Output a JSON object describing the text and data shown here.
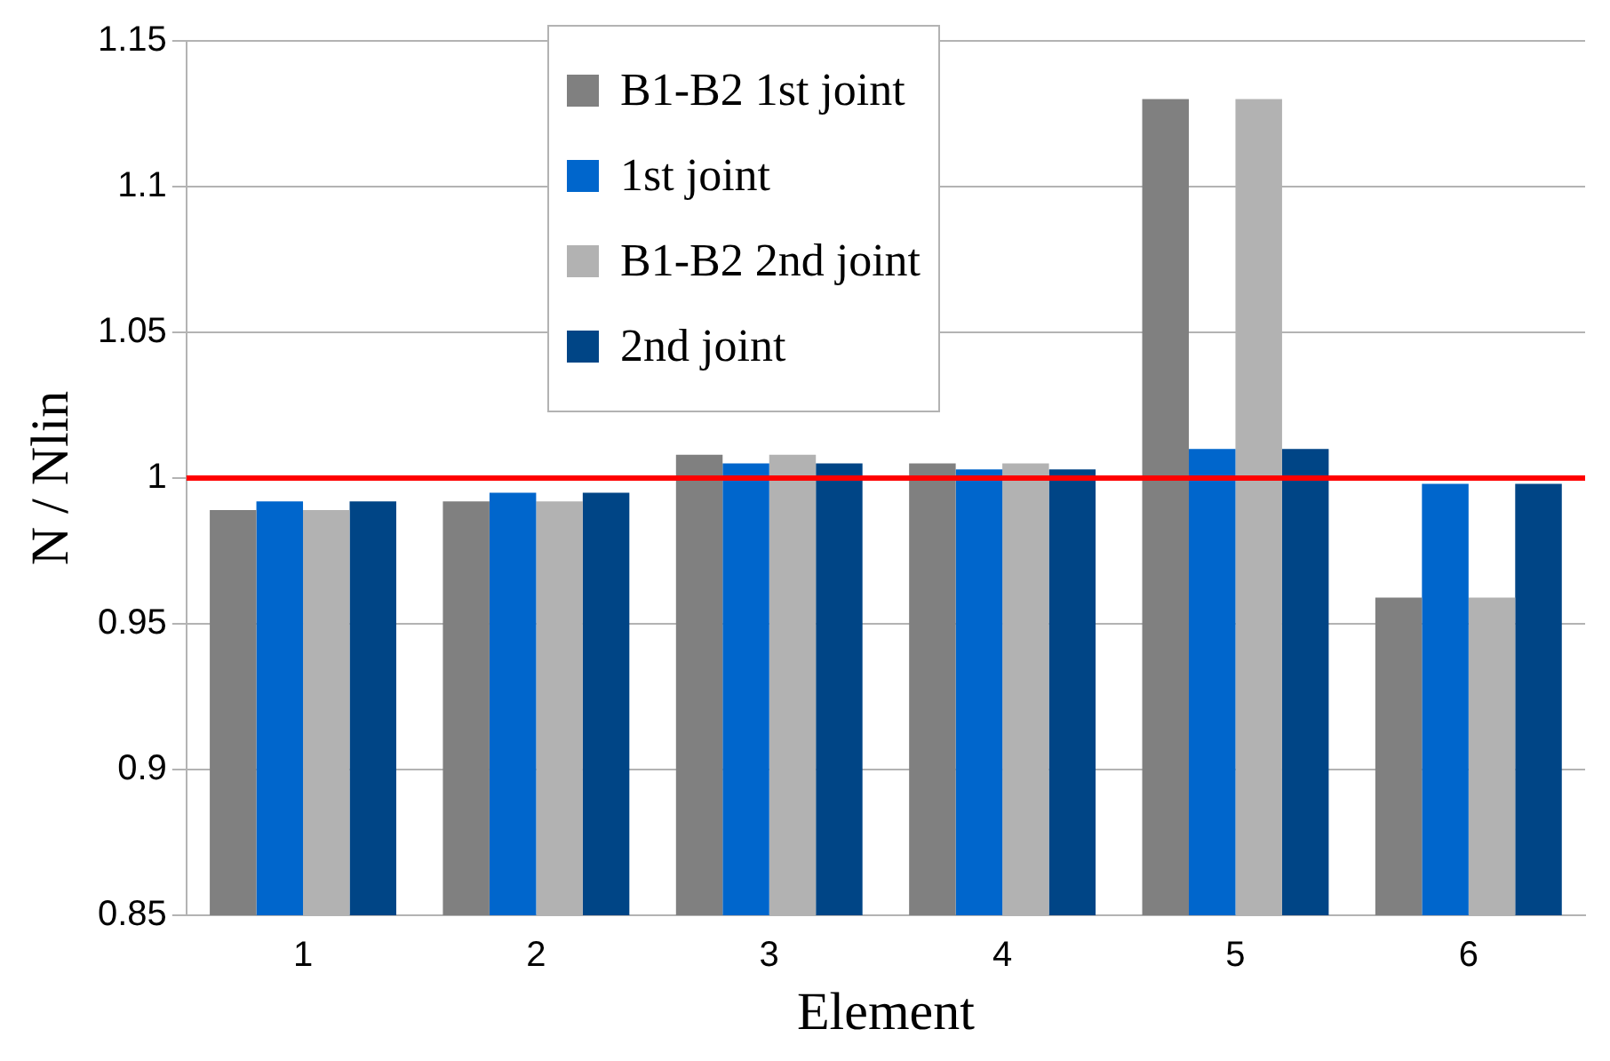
{
  "chart_data": {
    "type": "bar",
    "xlabel": "Element",
    "ylabel": "N / Nlin",
    "categories": [
      "1",
      "2",
      "3",
      "4",
      "5",
      "6"
    ],
    "series": [
      {
        "name": "B1-B2 1st joint",
        "color": "#808080",
        "values": [
          0.989,
          0.992,
          1.008,
          1.005,
          1.13,
          0.959
        ]
      },
      {
        "name": "1st joint",
        "color": "#0066cc",
        "values": [
          0.992,
          0.995,
          1.005,
          1.003,
          1.01,
          0.998
        ]
      },
      {
        "name": "B1-B2 2nd joint",
        "color": "#b2b2b2",
        "values": [
          0.989,
          0.992,
          1.008,
          1.005,
          1.13,
          0.959
        ]
      },
      {
        "name": "2nd joint",
        "color": "#004586",
        "values": [
          0.992,
          0.995,
          1.005,
          1.003,
          1.01,
          0.998
        ]
      }
    ],
    "ylim": [
      0.85,
      1.15
    ],
    "yticks": [
      {
        "value": 0.85,
        "label": "0.85"
      },
      {
        "value": 0.9,
        "label": "0.9"
      },
      {
        "value": 0.95,
        "label": "0.95"
      },
      {
        "value": 1,
        "label": "1"
      },
      {
        "value": 1.05,
        "label": "1.05"
      },
      {
        "value": 1.1,
        "label": "1.1"
      },
      {
        "value": 1.15,
        "label": "1.15"
      }
    ],
    "grid": "y",
    "legend": "top",
    "ref_lines": [
      {
        "axis": "y",
        "value": 1,
        "color": "#ff0000"
      }
    ]
  }
}
